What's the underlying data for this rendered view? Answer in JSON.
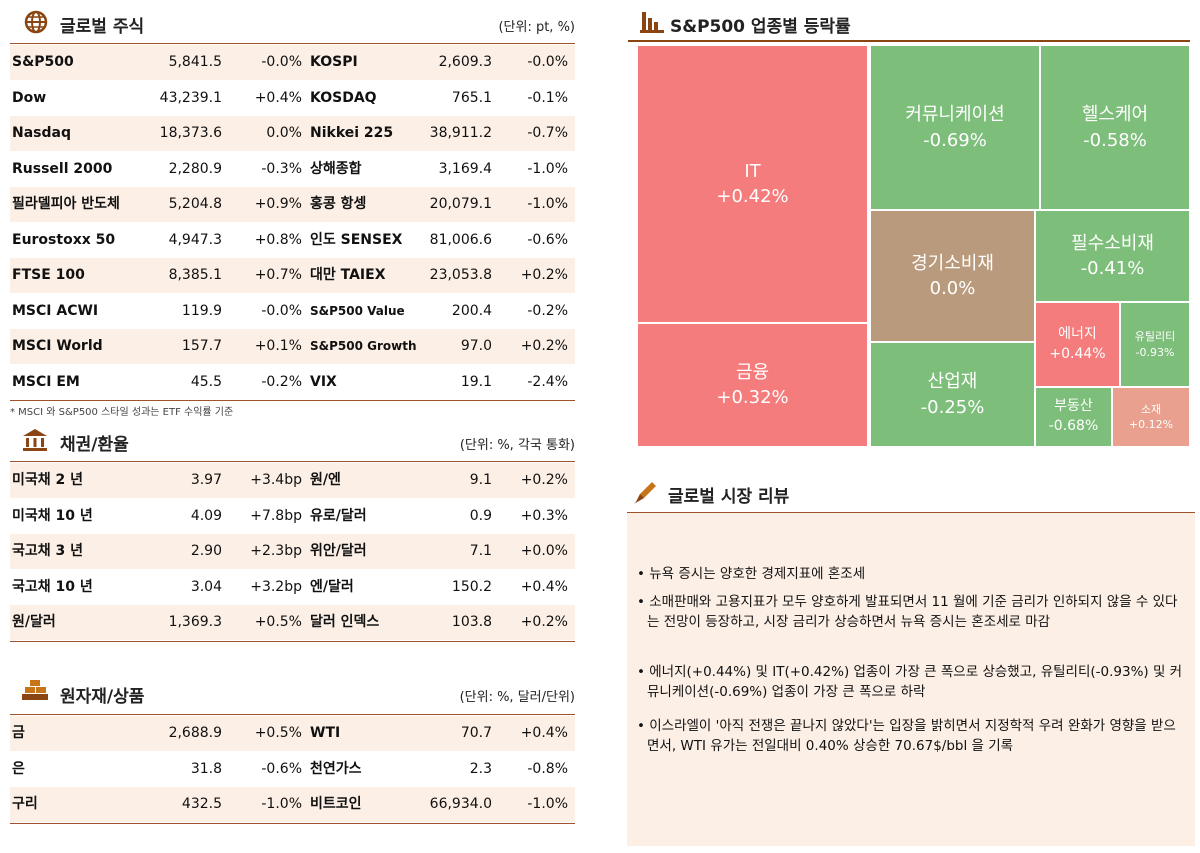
{
  "stocks": {
    "title": "글로벌 주식",
    "unit": "(단위: pt, %)",
    "rows": [
      [
        "S&P500",
        "5,841.5",
        "-0.0%",
        "KOSPI",
        "2,609.3",
        "-0.0%"
      ],
      [
        "Dow",
        "43,239.1",
        "+0.4%",
        "KOSDAQ",
        "765.1",
        "-0.1%"
      ],
      [
        "Nasdaq",
        "18,373.6",
        "0.0%",
        "Nikkei 225",
        "38,911.2",
        "-0.7%"
      ],
      [
        "Russell 2000",
        "2,280.9",
        "-0.3%",
        "상해종합",
        "3,169.4",
        "-1.0%"
      ],
      [
        "필라델피아 반도체",
        "5,204.8",
        "+0.9%",
        "홍콩 항셍",
        "20,079.1",
        "-1.0%"
      ],
      [
        "Eurostoxx 50",
        "4,947.3",
        "+0.8%",
        "인도 SENSEX",
        "81,006.6",
        "-0.6%"
      ],
      [
        "FTSE 100",
        "8,385.1",
        "+0.7%",
        "대만 TAIEX",
        "23,053.8",
        "+0.2%"
      ],
      [
        "MSCI ACWI",
        "119.9",
        "-0.0%",
        "S&P500 Value",
        "200.4",
        "-0.2%"
      ],
      [
        "MSCI World",
        "157.7",
        "+0.1%",
        "S&P500 Growth",
        "97.0",
        "+0.2%"
      ],
      [
        "MSCI EM",
        "45.5",
        "-0.2%",
        "VIX",
        "19.1",
        "-2.4%"
      ]
    ],
    "note": "* MSCI 와 S&P500 스타일 성과는 ETF 수익률 기준"
  },
  "bonds": {
    "title": "채권/환율",
    "unit": "(단위: %, 각국 통화)",
    "rows": [
      [
        "미국채 2 년",
        "3.97",
        "+3.4bp",
        "원/엔",
        "9.1",
        "+0.2%"
      ],
      [
        "미국채 10 년",
        "4.09",
        "+7.8bp",
        "유로/달러",
        "0.9",
        "+0.3%"
      ],
      [
        "국고채 3 년",
        "2.90",
        "+2.3bp",
        "위안/달러",
        "7.1",
        "+0.0%"
      ],
      [
        "국고채 10 년",
        "3.04",
        "+3.2bp",
        "엔/달러",
        "150.2",
        "+0.4%"
      ],
      [
        "원/달러",
        "1,369.3",
        "+0.5%",
        "달러 인덱스",
        "103.8",
        "+0.2%"
      ]
    ]
  },
  "commodities": {
    "title": "원자재/상품",
    "unit": "(단위: %, 달러/단위)",
    "rows": [
      [
        "금",
        "2,688.9",
        "+0.5%",
        "WTI",
        "70.7",
        "+0.4%"
      ],
      [
        "은",
        "31.8",
        "-0.6%",
        "천연가스",
        "2.3",
        "-0.8%"
      ],
      [
        "구리",
        "432.5",
        "-1.0%",
        "비트코인",
        "66,934.0",
        "-1.0%"
      ]
    ]
  },
  "treemap": {
    "title": "S&P500 업종별 등락률",
    "tiles": [
      {
        "label": "IT",
        "value": "+0.42%"
      },
      {
        "label": "금융",
        "value": "+0.32%"
      },
      {
        "label": "커뮤니케이션",
        "value": "-0.69%"
      },
      {
        "label": "헬스케어",
        "value": "-0.58%"
      },
      {
        "label": "경기소비재",
        "value": "0.0%"
      },
      {
        "label": "필수소비재",
        "value": "-0.41%"
      },
      {
        "label": "산업재",
        "value": "-0.25%"
      },
      {
        "label": "에너지",
        "value": "+0.44%"
      },
      {
        "label": "유틸리티",
        "value": "-0.93%"
      },
      {
        "label": "부동산",
        "value": "-0.68%"
      },
      {
        "label": "소재",
        "value": "+0.12%"
      }
    ]
  },
  "review": {
    "title": "글로벌 시장 리뷰",
    "bullets": [
      "• 뉴욕 증시는 양호한 경제지표에 혼조세",
      "• 소매판매와 고용지표가 모두 양호하게 발표되면서 11 월에 기준 금리가 인하되지 않을 수 있다는 전망이 등장하고, 시장 금리가 상승하면서 뉴욕 증시는 혼조세로 마감",
      "• 에너지(+0.44%) 및 IT(+0.42%) 업종이 가장 큰 폭으로 상승했고, 유틸리티(-0.93%) 및 커뮤니케이션(-0.69%) 업종이 가장 큰 폭으로 하락",
      "• 이스라엘이 '아직 전쟁은 끝나지 않았다'는 입장을 밝히면서 지정학적 우려 완화가 영향을 받으면서, WTI 유가는 전일대비 0.40% 상승한 70.67$/bbl 을 기록"
    ]
  }
}
